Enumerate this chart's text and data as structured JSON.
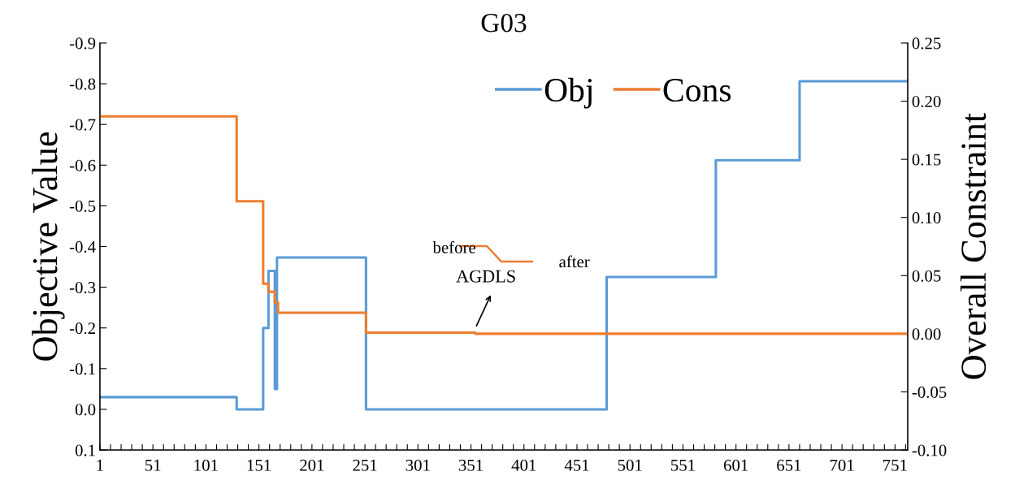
{
  "chart_data": {
    "type": "step",
    "title": "G03",
    "ylabel": "Objective Value",
    "y2label": "Overall Constraint",
    "xlim": [
      1,
      763
    ],
    "xticks": [
      1,
      {
        "value": 11,
        "label": null
      },
      {
        "value": 21,
        "label": null
      },
      {
        "value": 31,
        "label": null
      },
      {
        "value": 41,
        "label": null
      },
      51,
      {
        "value": 61,
        "label": null
      },
      {
        "value": 71,
        "label": null
      },
      {
        "value": 81,
        "label": null
      },
      {
        "value": 91,
        "label": null
      },
      101,
      {
        "value": 111,
        "label": null
      },
      {
        "value": 121,
        "label": null
      },
      {
        "value": 131,
        "label": null
      },
      {
        "value": 141,
        "label": null
      },
      151,
      {
        "value": 161,
        "label": null
      },
      {
        "value": 171,
        "label": null
      },
      {
        "value": 181,
        "label": null
      },
      {
        "value": 191,
        "label": null
      },
      201,
      {
        "value": 211,
        "label": null
      },
      {
        "value": 221,
        "label": null
      },
      {
        "value": 231,
        "label": null
      },
      {
        "value": 241,
        "label": null
      },
      251,
      {
        "value": 261,
        "label": null
      },
      {
        "value": 271,
        "label": null
      },
      {
        "value": 281,
        "label": null
      },
      {
        "value": 291,
        "label": null
      },
      301,
      {
        "value": 311,
        "label": null
      },
      {
        "value": 321,
        "label": null
      },
      {
        "value": 331,
        "label": null
      },
      {
        "value": 341,
        "label": null
      },
      351,
      {
        "value": 361,
        "label": null
      },
      {
        "value": 371,
        "label": null
      },
      {
        "value": 381,
        "label": null
      },
      {
        "value": 391,
        "label": null
      },
      401,
      {
        "value": 411,
        "label": null
      },
      {
        "value": 421,
        "label": null
      },
      {
        "value": 431,
        "label": null
      },
      {
        "value": 441,
        "label": null
      },
      451,
      {
        "value": 461,
        "label": null
      },
      {
        "value": 471,
        "label": null
      },
      {
        "value": 481,
        "label": null
      },
      {
        "value": 491,
        "label": null
      },
      501,
      {
        "value": 511,
        "label": null
      },
      {
        "value": 521,
        "label": null
      },
      {
        "value": 531,
        "label": null
      },
      {
        "value": 541,
        "label": null
      },
      551,
      {
        "value": 561,
        "label": null
      },
      {
        "value": 571,
        "label": null
      },
      {
        "value": 581,
        "label": null
      },
      {
        "value": 591,
        "label": null
      },
      601,
      {
        "value": 611,
        "label": null
      },
      {
        "value": 621,
        "label": null
      },
      {
        "value": 631,
        "label": null
      },
      {
        "value": 641,
        "label": null
      },
      651,
      {
        "value": 661,
        "label": null
      },
      {
        "value": 671,
        "label": null
      },
      {
        "value": 681,
        "label": null
      },
      {
        "value": 691,
        "label": null
      },
      701,
      {
        "value": 711,
        "label": null
      },
      {
        "value": 721,
        "label": null
      },
      {
        "value": 731,
        "label": null
      },
      {
        "value": 741,
        "label": null
      },
      751,
      {
        "value": 761,
        "label": null
      }
    ],
    "ylim": [
      0.1,
      -0.9
    ],
    "yticks": [
      -0.9,
      -0.8,
      -0.7,
      -0.6,
      -0.5,
      -0.4,
      -0.3,
      -0.2,
      -0.1,
      {
        "value": 0,
        "label": "0.0"
      },
      0.1
    ],
    "y2lim": [
      -0.1,
      0.25
    ],
    "y2ticks": [
      {
        "value": -0.1,
        "label": "-0.10"
      },
      {
        "value": -0.05,
        "label": "-0.05"
      },
      {
        "value": 0,
        "label": "0.00"
      },
      {
        "value": 0.05,
        "label": "0.05"
      },
      {
        "value": 0.1,
        "label": "0.10"
      },
      {
        "value": 0.15,
        "label": "0.15"
      },
      {
        "value": 0.2,
        "label": "0.20"
      },
      {
        "value": 0.25,
        "label": "0.25"
      }
    ],
    "series": [
      {
        "name": "Obj",
        "color": "#5b9bd5",
        "x": [
          1,
          130,
          155,
          160,
          166,
          168,
          252,
          479,
          582,
          661,
          763
        ],
        "values": [
          -0.03,
          0,
          -0.2,
          -0.34,
          -0.05,
          -0.373,
          0,
          -0.325,
          -0.612,
          -0.806,
          -0.806
        ]
      },
      {
        "name": "Cons",
        "color": "#ed7d31",
        "axis": "y2",
        "x": [
          1,
          130,
          155,
          160,
          166,
          169,
          252,
          355,
          763
        ],
        "values": [
          0.187,
          0.114,
          0.043,
          0.036,
          0.027,
          0.018,
          0.001,
          0.0,
          0.0
        ]
      }
    ],
    "annotations": [
      "before",
      "after",
      "AGDLS"
    ],
    "legend": "top right",
    "grid": false
  }
}
